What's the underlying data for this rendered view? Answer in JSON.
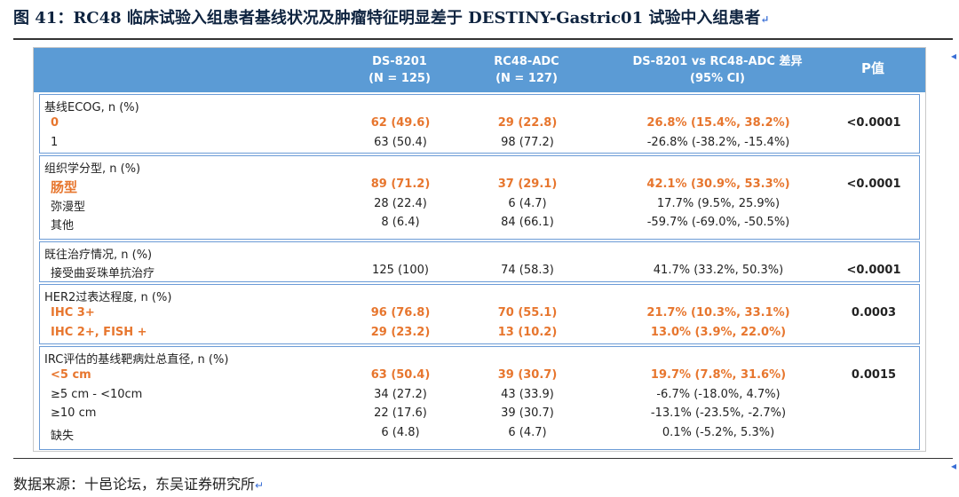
{
  "title": "图 41：RC48 临床试验入组患者基线状况及肿瘤特征明显差于 DESTINY-Gastric01 试验中入组患者",
  "source": "数据来源：十邑论坛，东吴证券研究所",
  "return_mark": "↵",
  "colors": {
    "header_bg": "#5b9bd5",
    "highlight": "#e7762e",
    "group_border": "#6b9bd6"
  },
  "header": {
    "col_a": [
      "DS-8201",
      "(N = 125)"
    ],
    "col_b": [
      "RC48-ADC",
      "(N = 127)"
    ],
    "col_d": [
      "DS-8201 vs RC48-ADC 差异",
      "(95% CI)"
    ],
    "col_p": "P值"
  },
  "groups": [
    {
      "title": "基线ECOG, n (%)",
      "p": "<0.0001",
      "rows": [
        {
          "label": "0",
          "a": "62 (49.6)",
          "b": "29 (22.8)",
          "d": "26.8% (15.4%, 38.2%)",
          "hl": true
        },
        {
          "label": "1",
          "a": "63 (50.4)",
          "b": "98 (77.2)",
          "d": "-26.8% (-38.2%, -15.4%)",
          "hl": false
        }
      ]
    },
    {
      "title": "组织学分型, n (%)",
      "p": "<0.0001",
      "rows": [
        {
          "label": "肠型",
          "a": "89 (71.2)",
          "b": "37 (29.1)",
          "d": "42.1% (30.9%, 53.3%)",
          "hl": true
        },
        {
          "label": "弥漫型",
          "a": "28 (22.4)",
          "b": "6 (4.7)",
          "d": "17.7% (9.5%, 25.9%)",
          "hl": false
        },
        {
          "label": "其他",
          "a": "8 (6.4)",
          "b": "84 (66.1)",
          "d": "-59.7% (-69.0%, -50.5%)",
          "hl": false
        }
      ]
    },
    {
      "title": "既往治疗情况, n (%)",
      "p": "<0.0001",
      "rows": [
        {
          "label": "接受曲妥珠单抗治疗",
          "a": "125 (100)",
          "b": "74 (58.3)",
          "d": "41.7% (33.2%, 50.3%)",
          "hl": false
        }
      ]
    },
    {
      "title": "HER2过表达程度, n (%)",
      "p": "0.0003",
      "rows": [
        {
          "label": "IHC 3+",
          "a": "96 (76.8)",
          "b": "70 (55.1)",
          "d": "21.7% (10.3%, 33.1%)",
          "hl": true
        },
        {
          "label": "IHC 2+, FISH +",
          "a": "29 (23.2)",
          "b": "13 (10.2)",
          "d": "13.0% (3.9%, 22.0%)",
          "hl": true
        }
      ]
    },
    {
      "title": "IRC评估的基线靶病灶总直径, n (%)",
      "p": "0.0015",
      "rows": [
        {
          "label": "<5 cm",
          "a": "63 (50.4)",
          "b": "39 (30.7)",
          "d": "19.7% (7.8%, 31.6%)",
          "hl": true
        },
        {
          "label": "≥5 cm - <10cm",
          "a": "34 (27.2)",
          "b": "43 (33.9)",
          "d": "-6.7% (-18.0%, 4.7%)",
          "hl": false
        },
        {
          "label": "≥10 cm",
          "a": "22 (17.6)",
          "b": "39 (30.7)",
          "d": "-13.1% (-23.5%, -2.7%)",
          "hl": false
        },
        {
          "label": "缺失",
          "a": "6 (4.8)",
          "b": "6 (4.7)",
          "d": "0.1% (-5.2%, 5.3%)",
          "hl": false
        }
      ]
    }
  ]
}
